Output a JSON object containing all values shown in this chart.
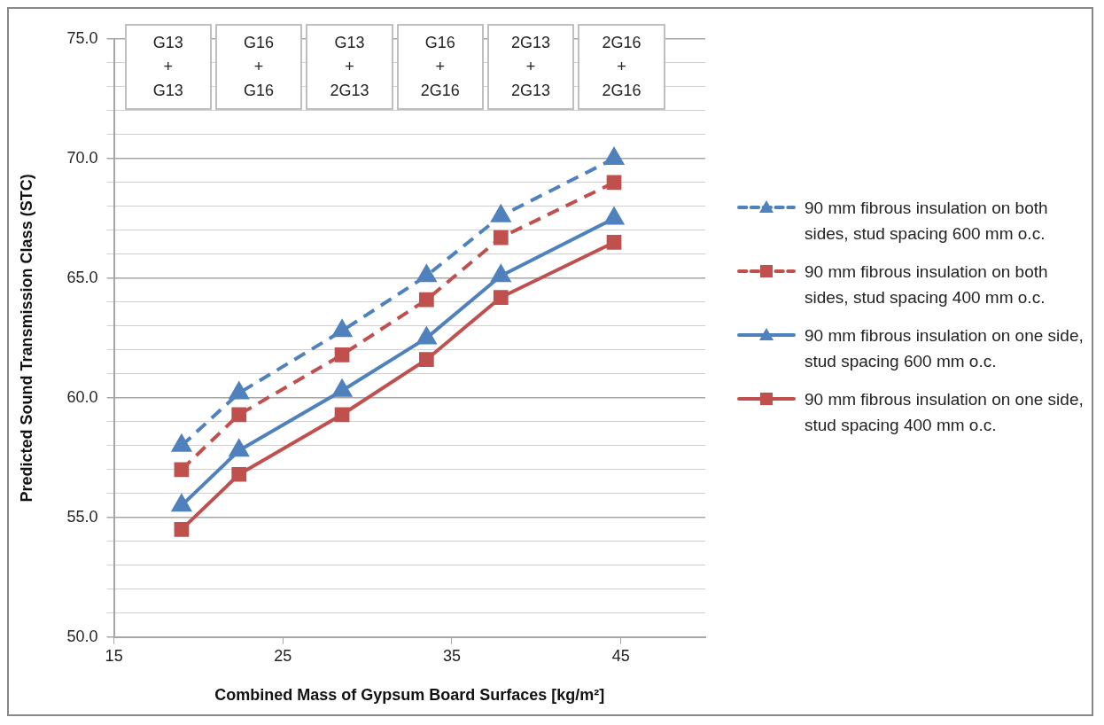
{
  "chart_data": {
    "type": "line",
    "xlabel": "Combined Mass of Gypsum Board Surfaces [kg/m²]",
    "ylabel": "Predicted Sound Transmission Class (STC)",
    "x": [
      19,
      22.4,
      28.5,
      33.5,
      37.9,
      44.6
    ],
    "xlim": [
      15,
      50
    ],
    "xticks": [
      15,
      25,
      35,
      45
    ],
    "ylim": [
      50,
      75
    ],
    "yticks": [
      {
        "value": 50,
        "label": "50.0"
      },
      {
        "value": 51,
        "label": null
      },
      {
        "value": 52,
        "label": null
      },
      {
        "value": 53,
        "label": null
      },
      {
        "value": 54,
        "label": null
      },
      {
        "value": 55,
        "label": "55.0"
      },
      {
        "value": 56,
        "label": null
      },
      {
        "value": 57,
        "label": null
      },
      {
        "value": 58,
        "label": null
      },
      {
        "value": 59,
        "label": null
      },
      {
        "value": 60,
        "label": "60.0"
      },
      {
        "value": 61,
        "label": null
      },
      {
        "value": 62,
        "label": null
      },
      {
        "value": 63,
        "label": null
      },
      {
        "value": 64,
        "label": null
      },
      {
        "value": 65,
        "label": "65.0"
      },
      {
        "value": 66,
        "label": null
      },
      {
        "value": 67,
        "label": null
      },
      {
        "value": 68,
        "label": null
      },
      {
        "value": 69,
        "label": null
      },
      {
        "value": 70,
        "label": "70.0"
      },
      {
        "value": 71,
        "label": null
      },
      {
        "value": 72,
        "label": null
      },
      {
        "value": 73,
        "label": null
      },
      {
        "value": 74,
        "label": null
      },
      {
        "value": 75,
        "label": "75.0"
      }
    ],
    "grid": "y",
    "legend": "right",
    "series": [
      {
        "name": "90 mm fibrous insulation on both sides, stud spacing 600 mm o.c.",
        "color": "#4f81bd",
        "marker": "triangle",
        "line_style": "dashed",
        "values": [
          58.0,
          60.2,
          62.8,
          65.1,
          67.6,
          70.0
        ]
      },
      {
        "name": "90 mm fibrous insulation on both sides, stud spacing 400 mm o.c.",
        "color": "#c0504d",
        "marker": "square",
        "line_style": "dashed",
        "values": [
          57.0,
          59.3,
          61.8,
          64.1,
          66.7,
          69.0
        ]
      },
      {
        "name": "90 mm fibrous insulation on one side, stud spacing 600 mm o.c.",
        "color": "#4f81bd",
        "marker": "triangle",
        "line_style": "solid",
        "values": [
          55.5,
          57.8,
          60.3,
          62.5,
          65.1,
          67.5
        ]
      },
      {
        "name": "90 mm fibrous insulation on one side, stud spacing 400 mm o.c.",
        "color": "#c0504d",
        "marker": "square",
        "line_style": "solid",
        "values": [
          54.5,
          56.8,
          59.3,
          61.6,
          64.2,
          66.5
        ]
      }
    ],
    "annotations": [
      "G13\n+\nG13",
      "G16\n+\nG16",
      "G13\n+\n2G13",
      "G16\n+\n2G16",
      "2G13\n+\n2G13",
      "2G16\n+\n2G16"
    ]
  }
}
